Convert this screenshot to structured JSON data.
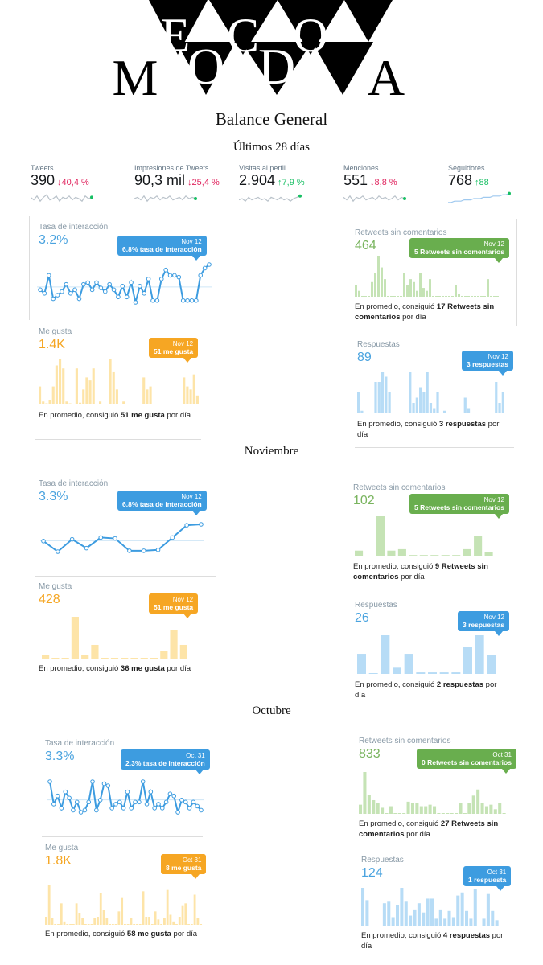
{
  "logo": {
    "top": [
      "E",
      "C",
      "O"
    ],
    "bottom": [
      "M",
      "O",
      "D",
      "A"
    ]
  },
  "title": "Balance General",
  "sections": {
    "s1": "Últimos 28 días",
    "s2": "Noviembre",
    "s3": "Octubre"
  },
  "stats": [
    {
      "label": "Tweets",
      "value": "390",
      "change": "40,4 %",
      "dir": "down"
    },
    {
      "label": "Impresiones de Tweets",
      "value": "90,3 mil",
      "change": "25,4 %",
      "dir": "down"
    },
    {
      "label": "Visitas al perfil",
      "value": "2.904",
      "change": "7,9 %",
      "dir": "up"
    },
    {
      "label": "Menciones",
      "value": "551",
      "change": "8,8 %",
      "dir": "down"
    },
    {
      "label": "Seguidores",
      "value": "768",
      "change": "88",
      "dir": "up"
    }
  ],
  "s1": {
    "rate": {
      "label": "Tasa de interacción",
      "value": "3.2%",
      "tip_date": "Nov 12",
      "tip_text": "6.8% tasa de interacción",
      "series": [
        2.6,
        2.4,
        3.4,
        2.1,
        2.3,
        2.5,
        2.9,
        2.4,
        2.6,
        2.1,
        2.9,
        3.0,
        2.6,
        3.0,
        2.7,
        2.5,
        2.9,
        2.6,
        2.2,
        2.8,
        2.2,
        3.0,
        1.9,
        2.8,
        2.4,
        3.2,
        2.0,
        2.0,
        3.2,
        3.7,
        3.4,
        3.4,
        3.3,
        2.0,
        2.0,
        2.0,
        2.0,
        3.4,
        3.8,
        4.0
      ]
    },
    "likes": {
      "label": "Me gusta",
      "value": "1.4K",
      "tip_date": "Nov 12",
      "tip_text": "51 me gusta",
      "footer_pre": "En promedio, consiguió ",
      "footer_bold": "51 me gusta",
      "footer_post": " por día",
      "bars": [
        30,
        5,
        2,
        8,
        30,
        65,
        75,
        60,
        5,
        2,
        0,
        60,
        3,
        25,
        45,
        40,
        60,
        0,
        5,
        0,
        0,
        75,
        55,
        25,
        0,
        5,
        0,
        0,
        0,
        0,
        0,
        45,
        25,
        30,
        0,
        0,
        0,
        0,
        0,
        0,
        0,
        0,
        0,
        45,
        30,
        25,
        50,
        15
      ]
    },
    "retweets": {
      "label": "Retweets sin comentarios",
      "value": "464",
      "tip_date": "Nov 12",
      "tip_text": "5 Retweets sin comentarios",
      "footer_pre": "En promedio, consiguió ",
      "footer_bold": "17 Retweets sin comentarios",
      "footer_post": " por día",
      "bars": [
        20,
        10,
        0,
        0,
        0,
        25,
        40,
        70,
        50,
        30,
        0,
        0,
        0,
        0,
        0,
        40,
        20,
        30,
        25,
        10,
        40,
        15,
        10,
        30,
        0,
        0,
        0,
        0,
        0,
        0,
        0,
        20,
        5,
        0,
        0,
        0,
        0,
        0,
        0,
        0,
        0,
        30,
        0,
        0,
        0
      ]
    },
    "replies": {
      "label": "Respuestas",
      "value": "89",
      "tip_date": "Nov 12",
      "tip_text": "3 respuestas",
      "footer_pre": "En promedio, consiguió ",
      "footer_bold": "3 respuestas",
      "footer_post": " por día",
      "bars": [
        40,
        5,
        0,
        0,
        0,
        60,
        60,
        80,
        70,
        40,
        0,
        0,
        0,
        0,
        0,
        80,
        20,
        30,
        50,
        40,
        80,
        20,
        10,
        40,
        0,
        5,
        0,
        0,
        0,
        0,
        0,
        30,
        10,
        0,
        0,
        0,
        0,
        0,
        0,
        0,
        60,
        20,
        40
      ]
    }
  },
  "s2": {
    "rate": {
      "label": "Tasa de interacción",
      "value": "3.3%",
      "tip_date": "Nov 12",
      "tip_text": "6.8% tasa de interacción",
      "series": [
        3.6,
        2.4,
        3.8,
        2.8,
        4.0,
        3.9,
        2.5,
        2.5,
        2.6,
        4.0,
        5.4,
        5.5
      ]
    },
    "likes": {
      "label": "Me gusta",
      "value": "428",
      "tip_date": "Nov 12",
      "tip_text": "51 me gusta",
      "footer_pre": "En promedio, consiguió ",
      "footer_bold": "36 me gusta",
      "footer_post": " por día",
      "bars": [
        5,
        0,
        0,
        55,
        5,
        18,
        0,
        0,
        0,
        0,
        0,
        0,
        10,
        38,
        18
      ]
    },
    "retweets": {
      "label": "Retweets sin comentarios",
      "value": "102",
      "tip_date": "Nov 12",
      "tip_text": "5 Retweets sin comentarios",
      "footer_pre": "En promedio, consiguió ",
      "footer_bold": "9 Retweets sin comentarios",
      "footer_post": " por día",
      "bars": [
        8,
        0,
        55,
        8,
        10,
        2,
        2,
        2,
        2,
        2,
        10,
        28,
        6
      ]
    },
    "replies": {
      "label": "Respuestas",
      "value": "26",
      "tip_date": "Nov 12",
      "tip_text": "3 respuestas",
      "footer_pre": "En promedio, consiguió ",
      "footer_bold": "2 respuestas",
      "footer_post": " por día",
      "bars": [
        26,
        0,
        50,
        8,
        26,
        2,
        2,
        2,
        2,
        35,
        50,
        25
      ]
    }
  },
  "s3": {
    "rate": {
      "label": "Tasa de interacción",
      "value": "3.3%",
      "tip_date": "Oct 31",
      "tip_text": "2.3% tasa de interacción",
      "series": [
        3.6,
        2.5,
        2.9,
        2.3,
        3.1,
        2.8,
        2.2,
        2.6,
        2.1,
        2.2,
        2.6,
        3.6,
        2.2,
        2.7,
        3.5,
        3.4,
        2.3,
        2.5,
        2.6,
        2.3,
        3.1,
        2.3,
        2.6,
        2.6,
        3.6,
        2.5,
        3.1,
        2.3,
        2.5,
        2.3,
        2.6,
        3.0,
        2.9,
        2.1,
        2.7,
        2.6,
        2.3,
        2.6,
        2.4,
        2.2
      ]
    },
    "likes": {
      "label": "Me gusta",
      "value": "1.8K",
      "tip_date": "Oct 31",
      "tip_text": "8 me gusta",
      "footer_pre": "En promedio, consiguió ",
      "footer_bold": "58 me gusta",
      "footer_post": " por día",
      "bars": [
        12,
        60,
        10,
        0,
        0,
        32,
        5,
        0,
        0,
        0,
        32,
        18,
        10,
        0,
        0,
        0,
        10,
        12,
        48,
        22,
        10,
        0,
        0,
        0,
        20,
        40,
        0,
        0,
        10,
        0,
        0,
        0,
        50,
        12,
        12,
        0,
        20,
        8,
        0,
        10,
        52,
        15,
        5,
        0,
        12,
        28,
        32,
        0,
        0,
        45,
        10,
        0
      ]
    },
    "retweets": {
      "label": "Retweets sin comentarios",
      "value": "833",
      "tip_date": "Oct 31",
      "tip_text": "0 Retweets sin comentarios",
      "footer_pre": "En promedio, consiguió ",
      "footer_bold": "27 Retweets sin comentarios",
      "footer_post": " por día",
      "bars": [
        12,
        55,
        25,
        18,
        14,
        8,
        0,
        10,
        0,
        0,
        0,
        16,
        14,
        14,
        10,
        10,
        12,
        10,
        0,
        0,
        0,
        0,
        0,
        14,
        0,
        14,
        24,
        32,
        14,
        10,
        12,
        6,
        14,
        0
      ]
    },
    "replies": {
      "label": "Respuestas",
      "value": "124",
      "tip_date": "Oct 31",
      "tip_text": "1 respuesta",
      "footer_pre": "En promedio, consiguió ",
      "footer_bold": "4 respuestas",
      "footer_post": " por día",
      "bars": [
        50,
        34,
        0,
        0,
        0,
        30,
        32,
        12,
        28,
        50,
        32,
        14,
        22,
        30,
        18,
        36,
        36,
        10,
        22,
        10,
        20,
        12,
        40,
        44,
        20,
        10,
        48,
        0,
        10,
        42,
        20,
        8
      ]
    }
  }
}
